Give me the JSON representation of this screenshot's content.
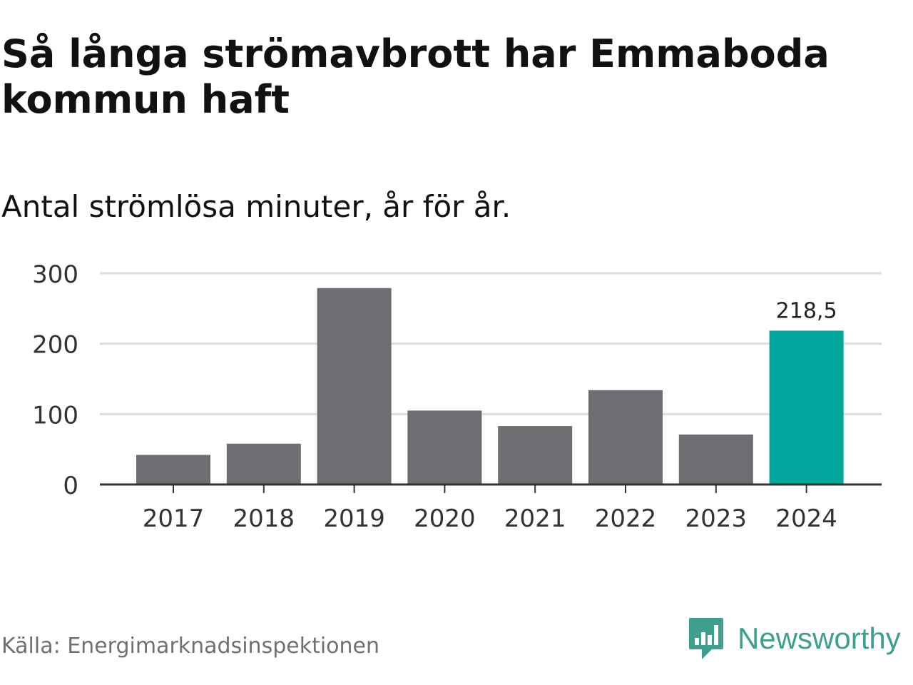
{
  "header": {
    "title": "Så långa strömavbrott har Emmaboda kommun haft",
    "subtitle": "Antal strömlösa minuter, år för år."
  },
  "footer": {
    "source": "Källa: Energimarknadsinspektionen",
    "brand": "Newsworthy"
  },
  "colors": {
    "bar": "#6e6d72",
    "highlight": "#00a59b",
    "grid": "#dedede",
    "axis": "#333333",
    "brand": "#3f9f8f"
  },
  "chart_data": {
    "type": "bar",
    "title": "Så långa strömavbrott har Emmaboda kommun haft",
    "subtitle": "Antal strömlösa minuter, år för år.",
    "xlabel": "",
    "ylabel": "",
    "categories": [
      "2017",
      "2018",
      "2019",
      "2020",
      "2021",
      "2022",
      "2023",
      "2024"
    ],
    "values": [
      42,
      58,
      279,
      105,
      83,
      134,
      71,
      218.5
    ],
    "highlight_index": 7,
    "highlight_label": "218,5",
    "yticks": [
      0,
      100,
      200,
      300
    ],
    "ylim": [
      0,
      300
    ],
    "grid": true
  }
}
